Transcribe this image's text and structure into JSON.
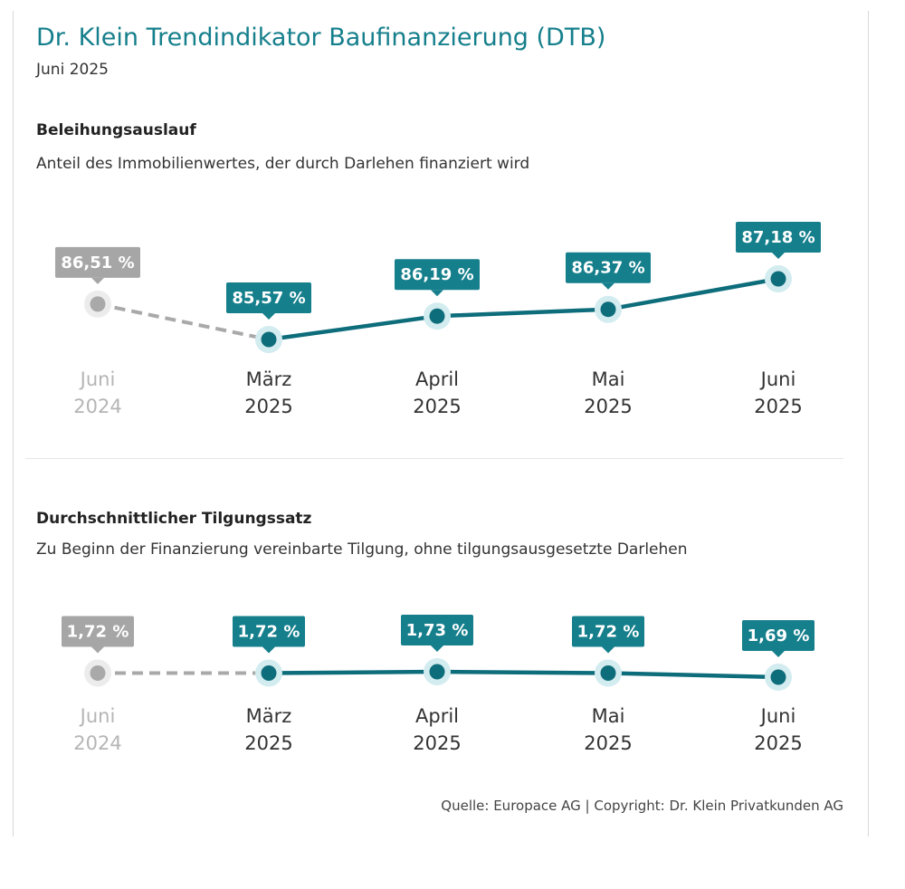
{
  "header": {
    "title": "Dr. Klein Trendindikator Baufinanzierung (DTB)",
    "subtitle": "Juni 2025"
  },
  "colors": {
    "accent": "#157f8c",
    "line": "#0e6d7b",
    "previous_year": "#a9a9a9",
    "halo": "#d3ecf0"
  },
  "chart_data": [
    {
      "type": "line",
      "title": "Beleihungsauslauf",
      "subtitle": "Anteil des Immobilienwertes, der durch Darlehen finanziert wird",
      "categories": [
        {
          "month": "Juni",
          "year": "2024"
        },
        {
          "month": "März",
          "year": "2025"
        },
        {
          "month": "April",
          "year": "2025"
        },
        {
          "month": "Mai",
          "year": "2025"
        },
        {
          "month": "Juni",
          "year": "2025"
        }
      ],
      "values": [
        86.51,
        85.57,
        86.19,
        86.37,
        87.18
      ],
      "labels": [
        "86,51 %",
        "85,57 %",
        "86,19 %",
        "86,37 %",
        "87,18 %"
      ],
      "unit": "%",
      "previous_year_index": 0
    },
    {
      "type": "line",
      "title": "Durchschnittlicher Tilgungssatz",
      "subtitle": "Zu Beginn der Finanzierung vereinbarte Tilgung, ohne tilgungsausgesetzte Darlehen",
      "categories": [
        {
          "month": "Juni",
          "year": "2024"
        },
        {
          "month": "März",
          "year": "2025"
        },
        {
          "month": "April",
          "year": "2025"
        },
        {
          "month": "Mai",
          "year": "2025"
        },
        {
          "month": "Juni",
          "year": "2025"
        }
      ],
      "values": [
        1.72,
        1.72,
        1.73,
        1.72,
        1.69
      ],
      "labels": [
        "1,72 %",
        "1,72 %",
        "1,73 %",
        "1,72 %",
        "1,69 %"
      ],
      "unit": "%",
      "previous_year_index": 0
    }
  ],
  "footer": {
    "source": "Quelle: Europace AG | Copyright: Dr. Klein Privatkunden AG"
  }
}
